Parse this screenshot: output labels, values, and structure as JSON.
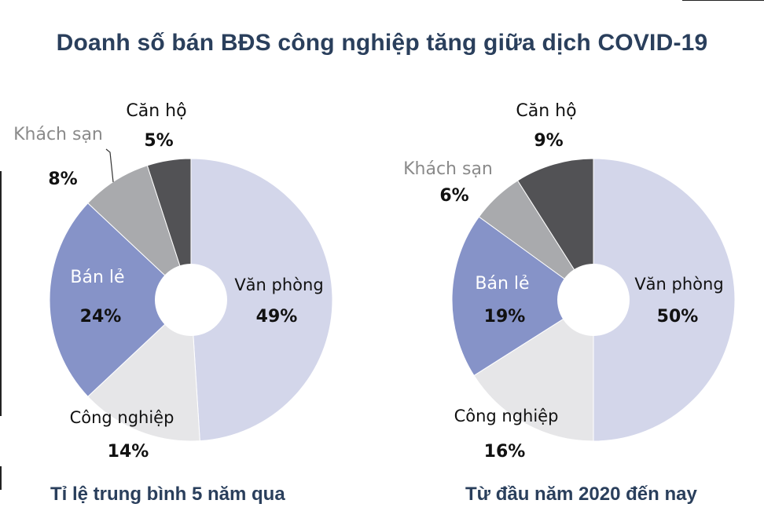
{
  "title": "Doanh số bán BĐS công nghiệp tăng giữa dịch COVID-19",
  "colors": {
    "title": "#2a3f5c",
    "van_phong": "#d3d6ea",
    "cong_nghiep": "#e6e6e8",
    "ban_le": "#8693c8",
    "khach_san": "#a9aaad",
    "can_ho": "#525255"
  },
  "chart_data": [
    {
      "type": "pie",
      "title": "Tỉ lệ trung bình 5 năm qua",
      "slices": [
        {
          "label": "Văn phòng",
          "value": 49,
          "value_label": "49%"
        },
        {
          "label": "Công nghiệp",
          "value": 14,
          "value_label": "14%"
        },
        {
          "label": "Bán lẻ",
          "value": 24,
          "value_label": "24%"
        },
        {
          "label": "Khách sạn",
          "value": 8,
          "value_label": "8%"
        },
        {
          "label": "Căn hộ",
          "value": 5,
          "value_label": "5%"
        }
      ]
    },
    {
      "type": "pie",
      "title": "Từ đầu năm 2020 đến nay",
      "slices": [
        {
          "label": "Văn phòng",
          "value": 50,
          "value_label": "50%"
        },
        {
          "label": "Công nghiệp",
          "value": 16,
          "value_label": "16%"
        },
        {
          "label": "Bán lẻ",
          "value": 19,
          "value_label": "19%"
        },
        {
          "label": "Khách sạn",
          "value": 6,
          "value_label": "6%"
        },
        {
          "label": "Căn hộ",
          "value": 9,
          "value_label": "9%"
        }
      ]
    }
  ]
}
